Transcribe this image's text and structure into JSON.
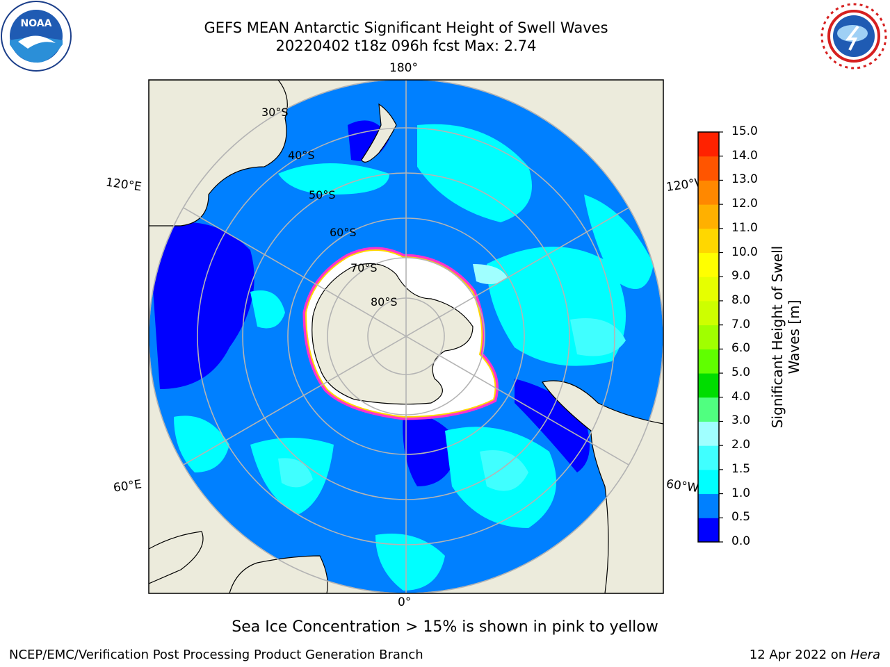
{
  "header": {
    "title_line1": "GEFS MEAN Antarctic Significant Height of Swell Waves",
    "title_line2": "20220402 t18z 096h fcst   Max: 2.74"
  },
  "logos": {
    "left_icon": "noaa-logo",
    "right_icon": "national-weather-service-logo"
  },
  "map": {
    "projection": "south-polar-stereographic",
    "longitude_labels": {
      "top": "180°",
      "bottom": "0°",
      "upper_left": "120°E",
      "upper_right": "120°W",
      "lower_left": "60°E",
      "lower_right": "60°W"
    },
    "latitude_labels": [
      "30°S",
      "40°S",
      "50°S",
      "60°S",
      "70°S",
      "80°S"
    ],
    "colors": {
      "land": "#ecebdc",
      "sea_ice": "#ffffff",
      "grid": "#b4b4b4",
      "border": "#000000"
    }
  },
  "colorbar": {
    "title_line1": "Significant Height of Swell",
    "title_line2": "Waves [m]",
    "ticks": [
      "0.0",
      "0.5",
      "1.0",
      "1.5",
      "2.0",
      "3.0",
      "4.0",
      "5.0",
      "6.0",
      "7.0",
      "8.0",
      "9.0",
      "10.0",
      "11.0",
      "12.0",
      "13.0",
      "14.0",
      "15.0"
    ],
    "colors": [
      "#0000ff",
      "#0080ff",
      "#00ffff",
      "#40ffff",
      "#a0ffff",
      "#50ff80",
      "#00dd00",
      "#60ff00",
      "#a0ff00",
      "#cdff00",
      "#e6ff00",
      "#ffff00",
      "#ffd700",
      "#ffb000",
      "#ff8800",
      "#ff5500",
      "#ff2200"
    ]
  },
  "footer": {
    "note": "Sea Ice Concentration > 15% is shown in pink to yellow",
    "credit": "NCEP/EMC/Verification Post Processing Product Generation Branch",
    "date": "12 Apr 2022 on",
    "machine": "Hera"
  }
}
